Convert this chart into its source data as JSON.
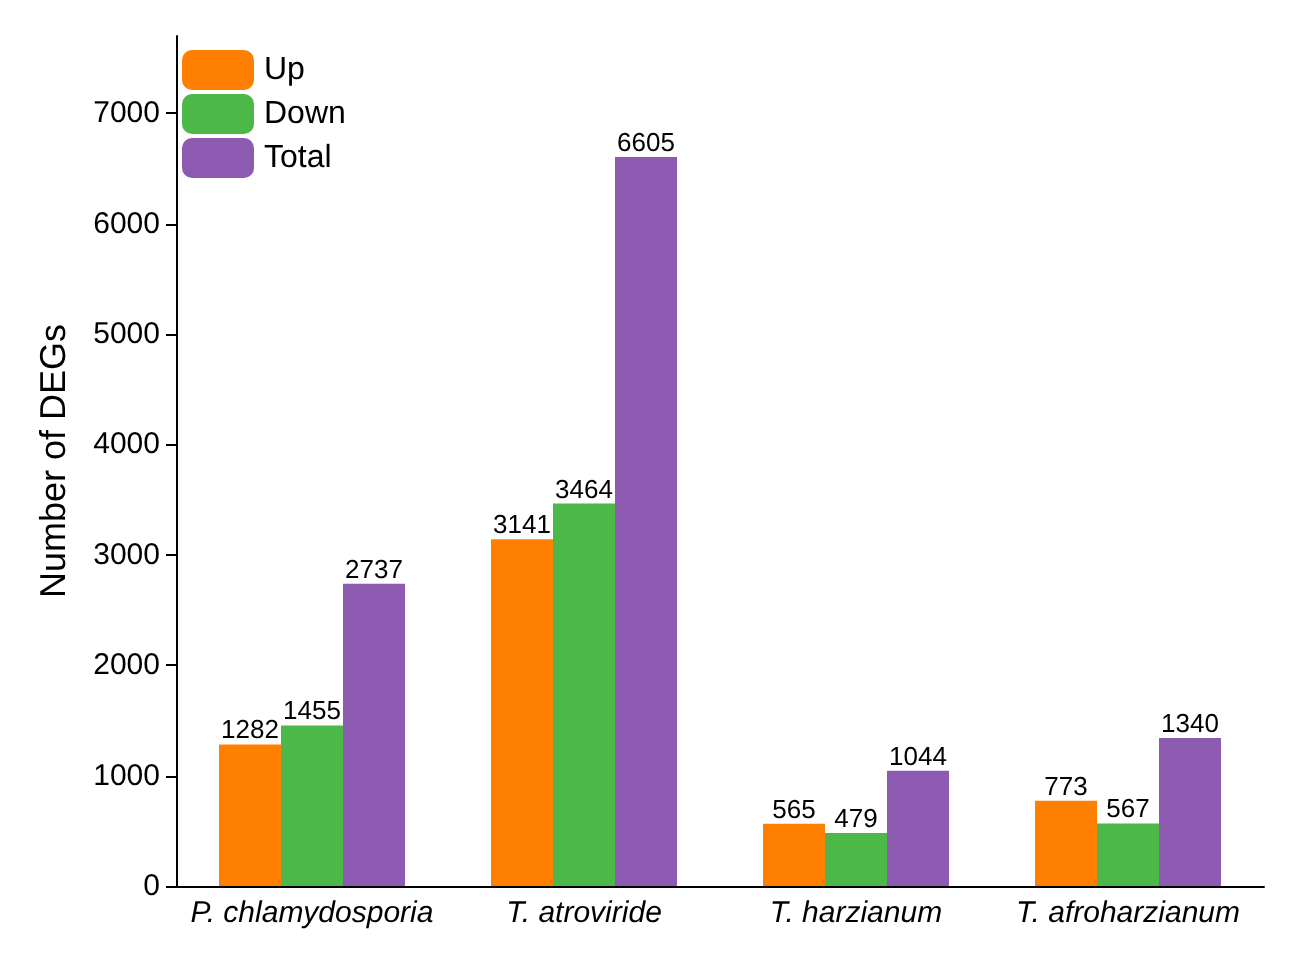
{
  "chart_data": {
    "type": "bar",
    "ylabel": "Number of DEGs",
    "categories": [
      "P. chlamydosporia",
      "T. atroviride",
      "T. harzianum",
      "T. afroharzianum"
    ],
    "series": [
      {
        "name": "Up",
        "color": "#ff8000",
        "values": [
          1282,
          3141,
          565,
          773
        ]
      },
      {
        "name": "Down",
        "color": "#4cb848",
        "values": [
          1455,
          3464,
          479,
          567
        ]
      },
      {
        "name": "Total",
        "color": "#8c5ab0",
        "values": [
          2737,
          6605,
          1044,
          1340
        ]
      }
    ],
    "ylim": [
      0,
      7700
    ],
    "yticks": [
      0,
      1000,
      2000,
      3000,
      4000,
      5000,
      6000,
      7000
    ],
    "data_labels": true,
    "legend": "top left",
    "grid": false
  }
}
